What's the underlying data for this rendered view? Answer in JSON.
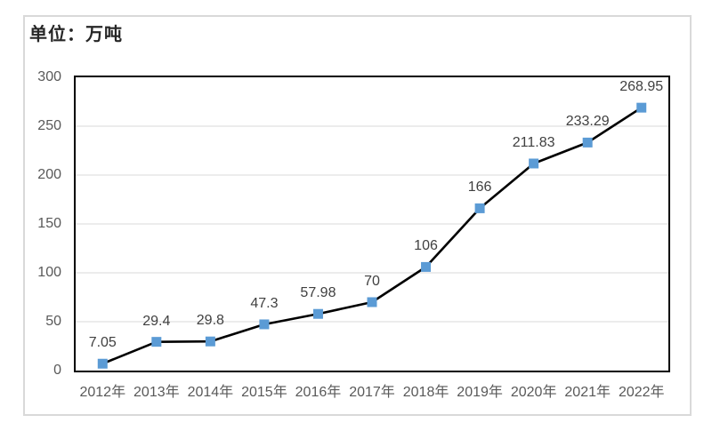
{
  "unit_label": "单位：万吨",
  "colors": {
    "marker": "#5B9BD5",
    "line": "#000000",
    "gridline": "#d9d9d9",
    "plot_border": "#000000",
    "card_border": "#d9d9d9",
    "tick_text": "#595959",
    "data_label_text": "#404040"
  },
  "chart_data": {
    "type": "line",
    "title": "",
    "unit": "万吨",
    "categories": [
      "2012年",
      "2013年",
      "2014年",
      "2015年",
      "2016年",
      "2017年",
      "2018年",
      "2019年",
      "2020年",
      "2021年",
      "2022年"
    ],
    "values": [
      7.05,
      29.4,
      29.8,
      47.3,
      57.98,
      70,
      106,
      166,
      211.83,
      233.29,
      268.95
    ],
    "data_labels": [
      "7.05",
      "29.4",
      "29.8",
      "47.3",
      "57.98",
      "70",
      "106",
      "166",
      "211.83",
      "233.29",
      "268.95"
    ],
    "ylim": [
      0,
      300
    ],
    "yticks": [
      0,
      50,
      100,
      150,
      200,
      250,
      300
    ],
    "xlabel": "",
    "ylabel": "",
    "grid": "horizontal",
    "legend": "none",
    "marker_shape": "square"
  }
}
